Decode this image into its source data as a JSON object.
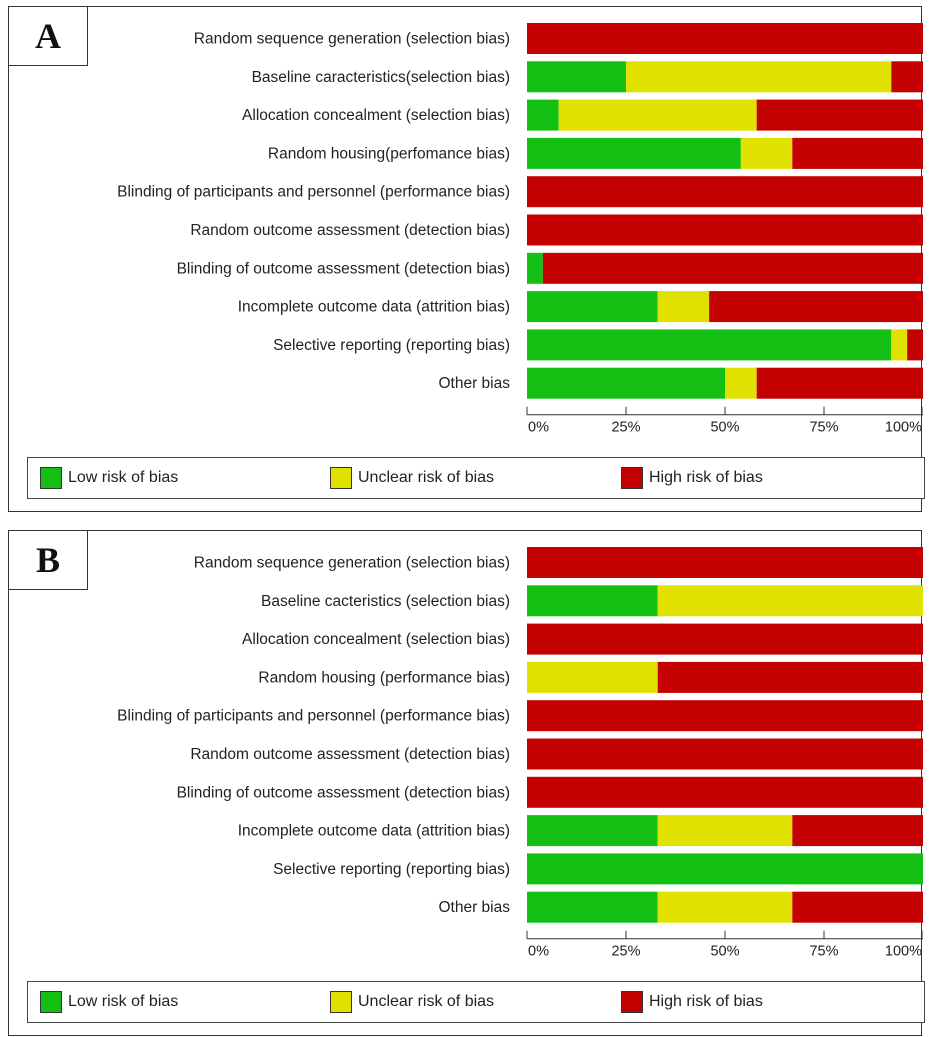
{
  "colors": {
    "low": "#13c013",
    "unclear": "#e1e100",
    "high": "#c50000"
  },
  "legend": {
    "low": "Low risk of bias",
    "unclear": "Unclear risk of bias",
    "high": "High risk of bias"
  },
  "chart_data": [
    {
      "type": "bar",
      "orientation": "horizontal-stacked-percent",
      "panel": "A",
      "categories": [
        "Random sequence generation (selection bias)",
        "Baseline caracteristics(selection bias)",
        "Allocation concealment (selection bias)",
        "Random housing(perfomance bias)",
        "Blinding of participants and personnel (performance bias)",
        "Random outcome assessment (detection bias)",
        "Blinding of outcome assessment (detection bias)",
        "Incomplete outcome data (attrition bias)",
        "Selective reporting (reporting bias)",
        "Other bias"
      ],
      "series": [
        {
          "key": "low",
          "name": "Low risk of bias",
          "values": [
            0,
            25,
            8,
            54,
            0,
            0,
            4,
            33,
            92,
            50
          ]
        },
        {
          "key": "unclear",
          "name": "Unclear risk of bias",
          "values": [
            0,
            67,
            50,
            13,
            0,
            0,
            0,
            13,
            4,
            8
          ]
        },
        {
          "key": "high",
          "name": "High risk of bias",
          "values": [
            100,
            8,
            42,
            33,
            100,
            100,
            96,
            54,
            4,
            42
          ]
        }
      ],
      "x_ticks": [
        "0%",
        "25%",
        "50%",
        "75%",
        "100%"
      ],
      "xlim": [
        0,
        100
      ],
      "legend_position": "bottom"
    },
    {
      "type": "bar",
      "orientation": "horizontal-stacked-percent",
      "panel": "B",
      "categories": [
        "Random sequence generation (selection bias)",
        "Baseline cacteristics (selection bias)",
        "Allocation concealment (selection bias)",
        "Random housing (performance bias)",
        "Blinding of participants and personnel (performance bias)",
        "Random outcome assessment (detection bias)",
        "Blinding of outcome assessment (detection bias)",
        "Incomplete outcome data (attrition bias)",
        "Selective reporting (reporting bias)",
        "Other bias"
      ],
      "series": [
        {
          "key": "low",
          "name": "Low risk of bias",
          "values": [
            0,
            33,
            0,
            0,
            0,
            0,
            0,
            33,
            100,
            33
          ]
        },
        {
          "key": "unclear",
          "name": "Unclear risk of bias",
          "values": [
            0,
            67,
            0,
            33,
            0,
            0,
            0,
            34,
            0,
            34
          ]
        },
        {
          "key": "high",
          "name": "High risk of bias",
          "values": [
            100,
            0,
            100,
            67,
            100,
            100,
            100,
            33,
            0,
            33
          ]
        }
      ],
      "x_ticks": [
        "0%",
        "25%",
        "50%",
        "75%",
        "100%"
      ],
      "xlim": [
        0,
        100
      ],
      "legend_position": "bottom"
    }
  ]
}
